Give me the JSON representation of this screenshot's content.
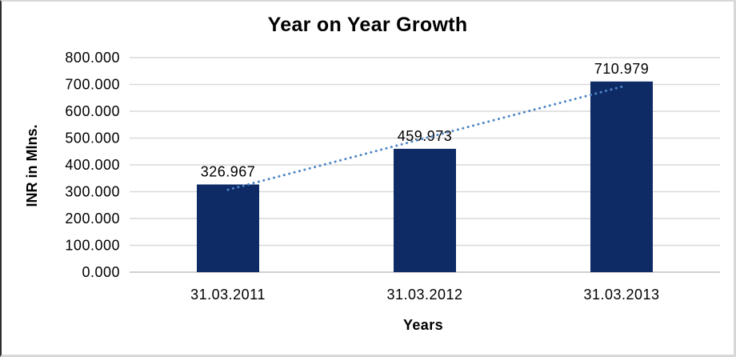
{
  "chart_data": {
    "type": "bar",
    "title": "Year on Year Growth",
    "xlabel": "Years",
    "ylabel": "INR in Mlns.",
    "categories": [
      "31.03.2011",
      "31.03.2012",
      "31.03.2013"
    ],
    "values": [
      326.967,
      459.973,
      710.979
    ],
    "data_labels": [
      "326.967",
      "459.973",
      "710.979"
    ],
    "ytick_labels": [
      "800.000",
      "700.000",
      "600.000",
      "500.000",
      "400.000",
      "300.000",
      "200.000",
      "100.000",
      "0.000"
    ],
    "ylim": [
      0,
      800
    ],
    "grid": "horizontal",
    "legend": "none",
    "trendline": {
      "type": "linear",
      "style": "dotted"
    },
    "colors": {
      "bar": "#0e2b66",
      "trendline": "#4f86c7",
      "gridline": "#d9d9d9",
      "axis_line": "#c0c0c0",
      "text": "#000000",
      "background": "#ffffff"
    }
  }
}
